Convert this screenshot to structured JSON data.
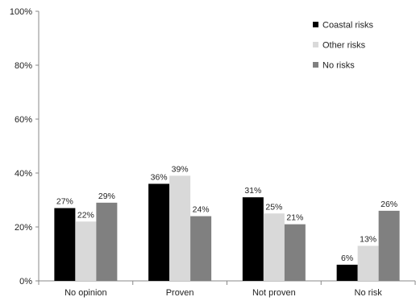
{
  "chart_data": {
    "type": "bar",
    "categories": [
      "No opinion",
      "Proven",
      "Not proven",
      "No risk"
    ],
    "series": [
      {
        "name": "Coastal risks",
        "values": [
          27,
          36,
          31,
          6
        ],
        "color": "#000000"
      },
      {
        "name": "Other risks",
        "values": [
          22,
          39,
          25,
          13
        ],
        "color": "#d9d9d9"
      },
      {
        "name": "No risks",
        "values": [
          29,
          24,
          21,
          26
        ],
        "color": "#808080"
      }
    ],
    "data_labels": [
      [
        "27%",
        "36%",
        "31%",
        "6%"
      ],
      [
        "22%",
        "39%",
        "25%",
        "13%"
      ],
      [
        "29%",
        "24%",
        "21%",
        "26%"
      ]
    ],
    "y_ticks": [
      0,
      20,
      40,
      60,
      80,
      100
    ],
    "y_tick_labels": [
      "0%",
      "20%",
      "40%",
      "60%",
      "80%",
      "100%"
    ],
    "ylim": [
      0,
      100
    ],
    "grid": false,
    "legend_position": "top-right"
  }
}
